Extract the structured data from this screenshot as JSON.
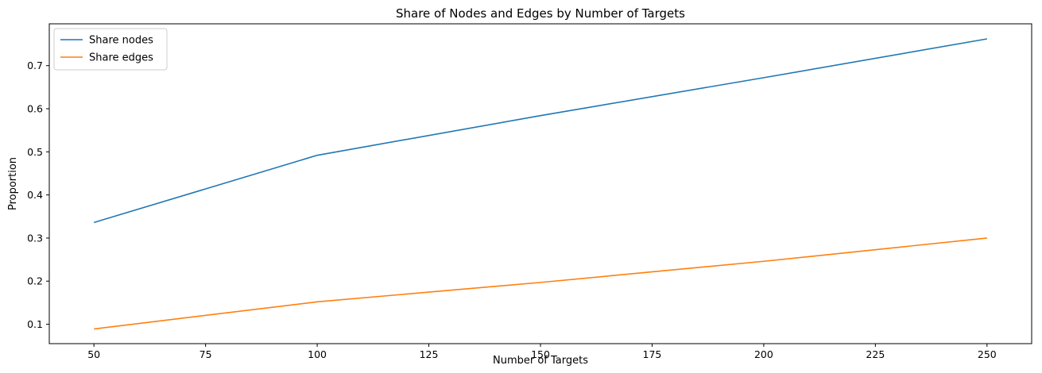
{
  "chart_data": {
    "type": "line",
    "title": "Share of Nodes and Edges by Number of Targets",
    "xlabel": "Number of Targets",
    "ylabel": "Proportion",
    "x": [
      50,
      100,
      150,
      200,
      250
    ],
    "series": [
      {
        "name": "Share nodes",
        "values": [
          0.336,
          0.492,
          0.584,
          0.672,
          0.762
        ],
        "color": "#1f77b4"
      },
      {
        "name": "Share edges",
        "values": [
          0.089,
          0.152,
          0.197,
          0.246,
          0.3
        ],
        "color": "#ff7f0e"
      }
    ],
    "xlim": [
      40,
      260
    ],
    "ylim": [
      0.055,
      0.797
    ],
    "xticks": [
      "50",
      "75",
      "100",
      "125",
      "150",
      "175",
      "200",
      "225",
      "250"
    ],
    "yticks": [
      "0.1",
      "0.2",
      "0.3",
      "0.4",
      "0.5",
      "0.6",
      "0.7"
    ],
    "grid": false,
    "legend_position": "top-left"
  }
}
